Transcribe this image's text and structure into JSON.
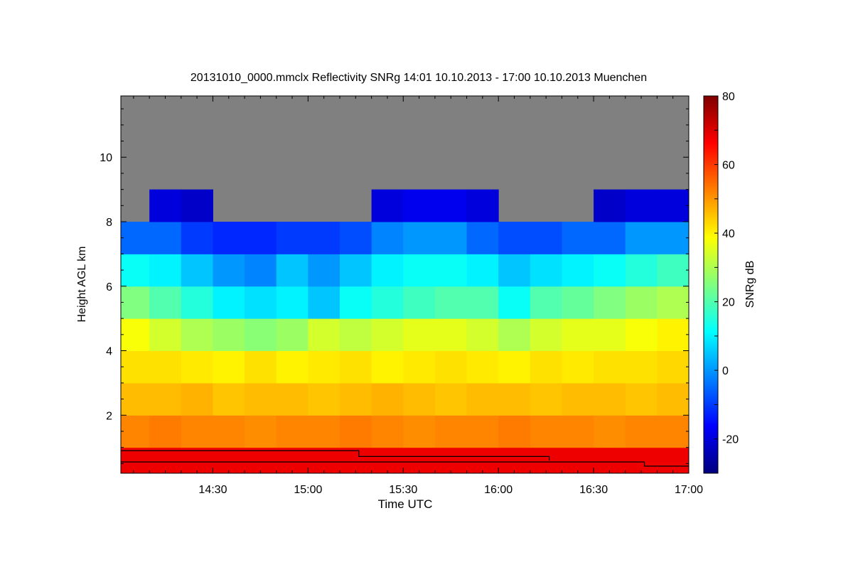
{
  "chart_data": {
    "type": "heatmap",
    "title": "20131010_0000.mmclx Reflectivity SNRg   14:01 10.10.2013 - 17:00 10.10.2013 Muenchen",
    "xlabel": "Time UTC",
    "ylabel": "Height AGL km",
    "colorbar_label": "SNRg dB",
    "x_range_minutes_after_1400": [
      1,
      180
    ],
    "x_ticks": [
      {
        "label": "14:30",
        "minutes": 30
      },
      {
        "label": "15:00",
        "minutes": 60
      },
      {
        "label": "15:30",
        "minutes": 90
      },
      {
        "label": "16:00",
        "minutes": 120
      },
      {
        "label": "16:30",
        "minutes": 150
      },
      {
        "label": "17:00",
        "minutes": 180
      }
    ],
    "ylim": [
      0.2,
      11.9
    ],
    "y_ticks": [
      2,
      4,
      6,
      8,
      10
    ],
    "colorbar_range": [
      -30,
      80
    ],
    "colorbar_ticks": [
      -20,
      0,
      20,
      40,
      60,
      80
    ],
    "missing_color": "#808080",
    "time_bin_start_minutes": [
      0,
      10,
      20,
      30,
      40,
      50,
      60,
      70,
      80,
      90,
      100,
      110,
      120,
      130,
      140,
      150,
      160,
      170
    ],
    "height_bin_centers_km": [
      0.5,
      1.5,
      2.5,
      3.5,
      4.5,
      5.5,
      6.5,
      7.5,
      8.5,
      9.5,
      10.5,
      11.5
    ],
    "values": [
      [
        68,
        68,
        68,
        68,
        68,
        68,
        68,
        68,
        68,
        68,
        68,
        68,
        68,
        68,
        68,
        68,
        68,
        68
      ],
      [
        52,
        53,
        52,
        52,
        51,
        52,
        52,
        53,
        52,
        51,
        52,
        52,
        53,
        52,
        52,
        51,
        52,
        52
      ],
      [
        46,
        46,
        47,
        45,
        46,
        46,
        45,
        46,
        47,
        46,
        45,
        46,
        46,
        45,
        46,
        46,
        45,
        46
      ],
      [
        42,
        42,
        41,
        40,
        42,
        40,
        41,
        42,
        40,
        41,
        42,
        41,
        40,
        42,
        41,
        42,
        42,
        43
      ],
      [
        38,
        34,
        30,
        28,
        26,
        28,
        34,
        32,
        34,
        36,
        36,
        34,
        30,
        34,
        36,
        36,
        38,
        40
      ],
      [
        25,
        20,
        15,
        10,
        8,
        10,
        5,
        12,
        15,
        18,
        20,
        20,
        12,
        20,
        22,
        25,
        28,
        30
      ],
      [
        12,
        10,
        5,
        0,
        -2,
        5,
        0,
        5,
        10,
        12,
        12,
        10,
        5,
        8,
        10,
        12,
        15,
        18
      ],
      [
        -5,
        -5,
        -10,
        -12,
        -12,
        -10,
        -10,
        -8,
        -2,
        0,
        0,
        -5,
        -8,
        -8,
        -5,
        -5,
        0,
        0
      ],
      [
        null,
        -20,
        -22,
        null,
        null,
        null,
        null,
        null,
        -20,
        -18,
        -18,
        -20,
        null,
        null,
        null,
        -22,
        -20,
        -20
      ],
      [
        null,
        null,
        null,
        null,
        null,
        null,
        null,
        null,
        null,
        null,
        null,
        null,
        null,
        null,
        null,
        null,
        null,
        null
      ],
      [
        null,
        null,
        null,
        null,
        null,
        null,
        null,
        null,
        null,
        null,
        null,
        null,
        null,
        null,
        null,
        null,
        null,
        null
      ],
      [
        null,
        null,
        null,
        null,
        null,
        null,
        null,
        null,
        null,
        null,
        null,
        null,
        null,
        null,
        null,
        null,
        null,
        null
      ]
    ],
    "boundary_lines": [
      [
        [
          1,
          0.9
        ],
        [
          76,
          0.9
        ],
        [
          76,
          0.72
        ],
        [
          136,
          0.72
        ],
        [
          136,
          0.6
        ]
      ],
      [
        [
          1,
          0.55
        ],
        [
          166,
          0.55
        ],
        [
          166,
          0.42
        ],
        [
          180,
          0.42
        ]
      ]
    ]
  }
}
